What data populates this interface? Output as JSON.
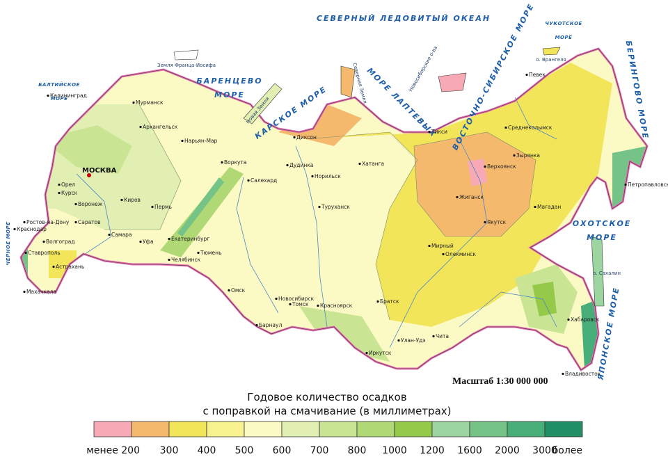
{
  "seas": [
    {
      "lines": [
        "СЕВЕРНЫЙ ЛЕДОВИТЫЙ ОКЕАН"
      ]
    },
    {
      "lines": [
        "БАРЕНЦЕВО",
        "МОРЕ"
      ]
    },
    {
      "lines": [
        "КАРСКОЕ МОРЕ"
      ]
    },
    {
      "lines": [
        "МОРЕ ЛАПТЕВЫХ"
      ]
    },
    {
      "lines": [
        "ВОСТОЧНО-СИБИРСКОЕ МОРЕ"
      ]
    },
    {
      "lines": [
        "ЧУКОТСКОЕ",
        "МОРЕ"
      ]
    },
    {
      "lines": [
        "БЕРИНГОВО МОРЕ"
      ]
    },
    {
      "lines": [
        "ОХОТСКОЕ",
        "МОРЕ"
      ]
    },
    {
      "lines": [
        "ЯПОНСКОЕ МОРЕ"
      ]
    },
    {
      "lines": [
        "БАЛТИЙСКОЕ",
        "МОРЕ"
      ]
    },
    {
      "lines": [
        "ЧЕРНОЕ МОРЕ"
      ]
    }
  ],
  "islands": [
    "Земля Франца-Иосифа",
    "Новая Земля",
    "Северная Земля",
    "Новосибирские о-ва",
    "о. Врангеля",
    "о. Сахалин"
  ],
  "capital": "МОСКВА",
  "cities": [
    "Калининград",
    "Мурманск",
    "Архангельск",
    "Орел",
    "Курск",
    "Воронеж",
    "Саратов",
    "Самара",
    "Уфа",
    "Пермь",
    "Киров",
    "Ростов-на-Дону",
    "Волгоград",
    "Астрахань",
    "Ставрополь",
    "Махачкала",
    "Краснодар",
    "Нарьян-Мар",
    "Воркута",
    "Салехард",
    "Екатеринбург",
    "Челябинск",
    "Тюмень",
    "Омск",
    "Новосибирск",
    "Томск",
    "Барнаул",
    "Красноярск",
    "Норильск",
    "Дудинка",
    "Диксон",
    "Хатанга",
    "Тикси",
    "Верхоянск",
    "Жиганск",
    "Якутск",
    "Мирный",
    "Олекминск",
    "Братск",
    "Иркутск",
    "Улан-Удэ",
    "Чита",
    "Туруханск",
    "Зырянка",
    "Среднеколымск",
    "Магадан",
    "Певек",
    "Хабаровск",
    "Владивосток",
    "Петропавловск-Камчатский"
  ],
  "scale": "Масштаб 1:30 000 000",
  "legend": {
    "title": [
      "Годовое количество осадков",
      "с поправкой на смачивание (в миллиметрах)"
    ],
    "items": [
      {
        "label": "менее 200",
        "color": "#f7aab6"
      },
      {
        "label": "300",
        "color": "#f5b96e"
      },
      {
        "label": "400",
        "color": "#f2e55a"
      },
      {
        "label": "500",
        "color": "#f7f28e"
      },
      {
        "label": "600",
        "color": "#fbfac4"
      },
      {
        "label": "700",
        "color": "#e2efb2"
      },
      {
        "label": "800",
        "color": "#c9e594"
      },
      {
        "label": "1000",
        "color": "#b0d874"
      },
      {
        "label": "1200",
        "color": "#95c94a"
      },
      {
        "label": "1600",
        "color": "#9cd5a0"
      },
      {
        "label": "2000",
        "color": "#76c388"
      },
      {
        "label": "3000",
        "color": "#47ad79"
      },
      {
        "label": "более",
        "color": "#218f66"
      }
    ]
  }
}
